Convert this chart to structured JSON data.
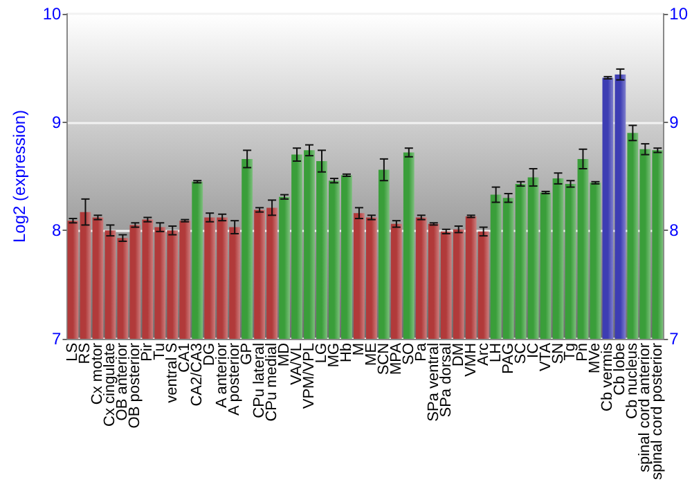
{
  "chart_data": {
    "type": "bar",
    "ylabel": "Log2 (expression)",
    "categories": [
      "LS",
      "RS",
      "Cx motor",
      "Cx cingulate",
      "OB anterior",
      "OB posterior",
      "Pir",
      "Tu",
      "ventral S",
      "CA1",
      "CA2/CA3",
      "DG",
      "A anterior",
      "A posterior",
      "GP",
      "CPu lateral",
      "CPu medial",
      "MD",
      "VA/VL",
      "VPM/VPL",
      "LG",
      "MG",
      "Hb",
      "M",
      "ME",
      "SCN",
      "MPA",
      "SO",
      "Pa",
      "SPa ventral",
      "SPa dorsal",
      "DM",
      "VMH",
      "Arc",
      "LH",
      "PAG",
      "SC",
      "IC",
      "VTA",
      "SN",
      "Tg",
      "Pn",
      "MVe",
      "Cb vermis",
      "Cb lobe",
      "Cb nucleus",
      "spinal cord anterior",
      "spinal cord posterior"
    ],
    "values": [
      8.09,
      8.17,
      8.12,
      8.0,
      7.93,
      8.05,
      8.1,
      8.03,
      8.0,
      8.09,
      8.45,
      8.12,
      8.12,
      8.03,
      8.66,
      8.19,
      8.21,
      8.31,
      8.7,
      8.74,
      8.64,
      8.46,
      8.51,
      8.16,
      8.12,
      8.56,
      8.06,
      8.72,
      8.12,
      8.06,
      7.99,
      8.01,
      8.13,
      7.99,
      8.33,
      8.3,
      8.43,
      8.49,
      8.35,
      8.48,
      8.43,
      8.66,
      8.44,
      9.41,
      9.44,
      8.9,
      8.75,
      8.74
    ],
    "errors": [
      0.02,
      0.12,
      0.02,
      0.05,
      0.03,
      0.02,
      0.02,
      0.04,
      0.04,
      0.01,
      0.01,
      0.04,
      0.03,
      0.06,
      0.08,
      0.02,
      0.07,
      0.02,
      0.06,
      0.05,
      0.1,
      0.02,
      0.01,
      0.05,
      0.02,
      0.1,
      0.03,
      0.04,
      0.02,
      0.01,
      0.02,
      0.03,
      0.01,
      0.04,
      0.07,
      0.04,
      0.02,
      0.08,
      0.01,
      0.05,
      0.03,
      0.09,
      0.01,
      0.01,
      0.05,
      0.07,
      0.05,
      0.02
    ],
    "colors": [
      "#b13a3a",
      "#b13a3a",
      "#b13a3a",
      "#b13a3a",
      "#b13a3a",
      "#b13a3a",
      "#b13a3a",
      "#b13a3a",
      "#b13a3a",
      "#b13a3a",
      "#3a9e3a",
      "#b13a3a",
      "#b13a3a",
      "#b13a3a",
      "#3a9e3a",
      "#b13a3a",
      "#b13a3a",
      "#3a9e3a",
      "#3a9e3a",
      "#3a9e3a",
      "#3a9e3a",
      "#3a9e3a",
      "#3a9e3a",
      "#b13a3a",
      "#b13a3a",
      "#3a9e3a",
      "#b13a3a",
      "#3a9e3a",
      "#b13a3a",
      "#b13a3a",
      "#b13a3a",
      "#b13a3a",
      "#b13a3a",
      "#b13a3a",
      "#3a9e3a",
      "#3a9e3a",
      "#3a9e3a",
      "#3a9e3a",
      "#3a9e3a",
      "#3a9e3a",
      "#3a9e3a",
      "#3a9e3a",
      "#3a9e3a",
      "#3d3db3",
      "#3d3db3",
      "#3a9e3a",
      "#3a9e3a",
      "#3a9e3a"
    ],
    "ylim": [
      7,
      10
    ],
    "yticks": [
      7,
      8,
      9,
      10
    ],
    "y2lim": [
      7,
      10
    ],
    "y2ticks": [
      7,
      8,
      9,
      10
    ],
    "grid": true
  }
}
